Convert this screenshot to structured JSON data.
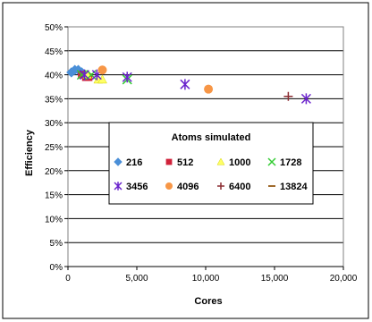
{
  "chart_data": {
    "type": "scatter",
    "title": "",
    "xlabel": "Cores",
    "ylabel": "Efficiency",
    "xlim": [
      0,
      20000
    ],
    "ylim": [
      0,
      0.5
    ],
    "x_ticks": [
      0,
      5000,
      10000,
      15000,
      20000
    ],
    "x_tick_labels": [
      "0",
      "5,000",
      "10,000",
      "15,000",
      "20,000"
    ],
    "y_ticks": [
      0,
      0.05,
      0.1,
      0.15,
      0.2,
      0.25,
      0.3,
      0.35,
      0.4,
      0.45,
      0.5
    ],
    "y_tick_labels": [
      "0%",
      "5%",
      "10%",
      "15%",
      "20%",
      "25%",
      "30%",
      "35%",
      "40%",
      "45%",
      "50%"
    ],
    "grid": "horizontal",
    "legend": {
      "title": "Atoms simulated",
      "placement": "center"
    },
    "series": [
      {
        "name": "216",
        "marker": "diamond",
        "color": "#4a8fd8",
        "points": [
          [
            250,
            0.405
          ],
          [
            500,
            0.41
          ],
          [
            750,
            0.41
          ],
          [
            1000,
            0.405
          ]
        ]
      },
      {
        "name": "512",
        "marker": "square",
        "color": "#d0223a",
        "points": [
          [
            1000,
            0.4
          ],
          [
            1300,
            0.395
          ],
          [
            1500,
            0.395
          ]
        ]
      },
      {
        "name": "1000",
        "marker": "triangle",
        "color": "#ffff66",
        "points": [
          [
            1400,
            0.4
          ],
          [
            2200,
            0.39
          ],
          [
            2500,
            0.39
          ]
        ]
      },
      {
        "name": "1728",
        "marker": "x",
        "color": "#33cc33",
        "points": [
          [
            1000,
            0.4
          ],
          [
            1700,
            0.4
          ],
          [
            4300,
            0.39
          ]
        ]
      },
      {
        "name": "3456",
        "marker": "star",
        "color": "#6a22cc",
        "points": [
          [
            1200,
            0.4
          ],
          [
            2100,
            0.4
          ],
          [
            4300,
            0.395
          ],
          [
            8500,
            0.38
          ],
          [
            17300,
            0.35
          ]
        ]
      },
      {
        "name": "4096",
        "marker": "circle",
        "color": "#f79646",
        "points": [
          [
            2500,
            0.41
          ],
          [
            10200,
            0.37
          ]
        ]
      },
      {
        "name": "6400",
        "marker": "plus",
        "color": "#8b2d32",
        "points": [
          [
            16000,
            0.355
          ]
        ]
      },
      {
        "name": "13824",
        "marker": "dash",
        "color": "#a06b2d",
        "points": []
      }
    ]
  }
}
